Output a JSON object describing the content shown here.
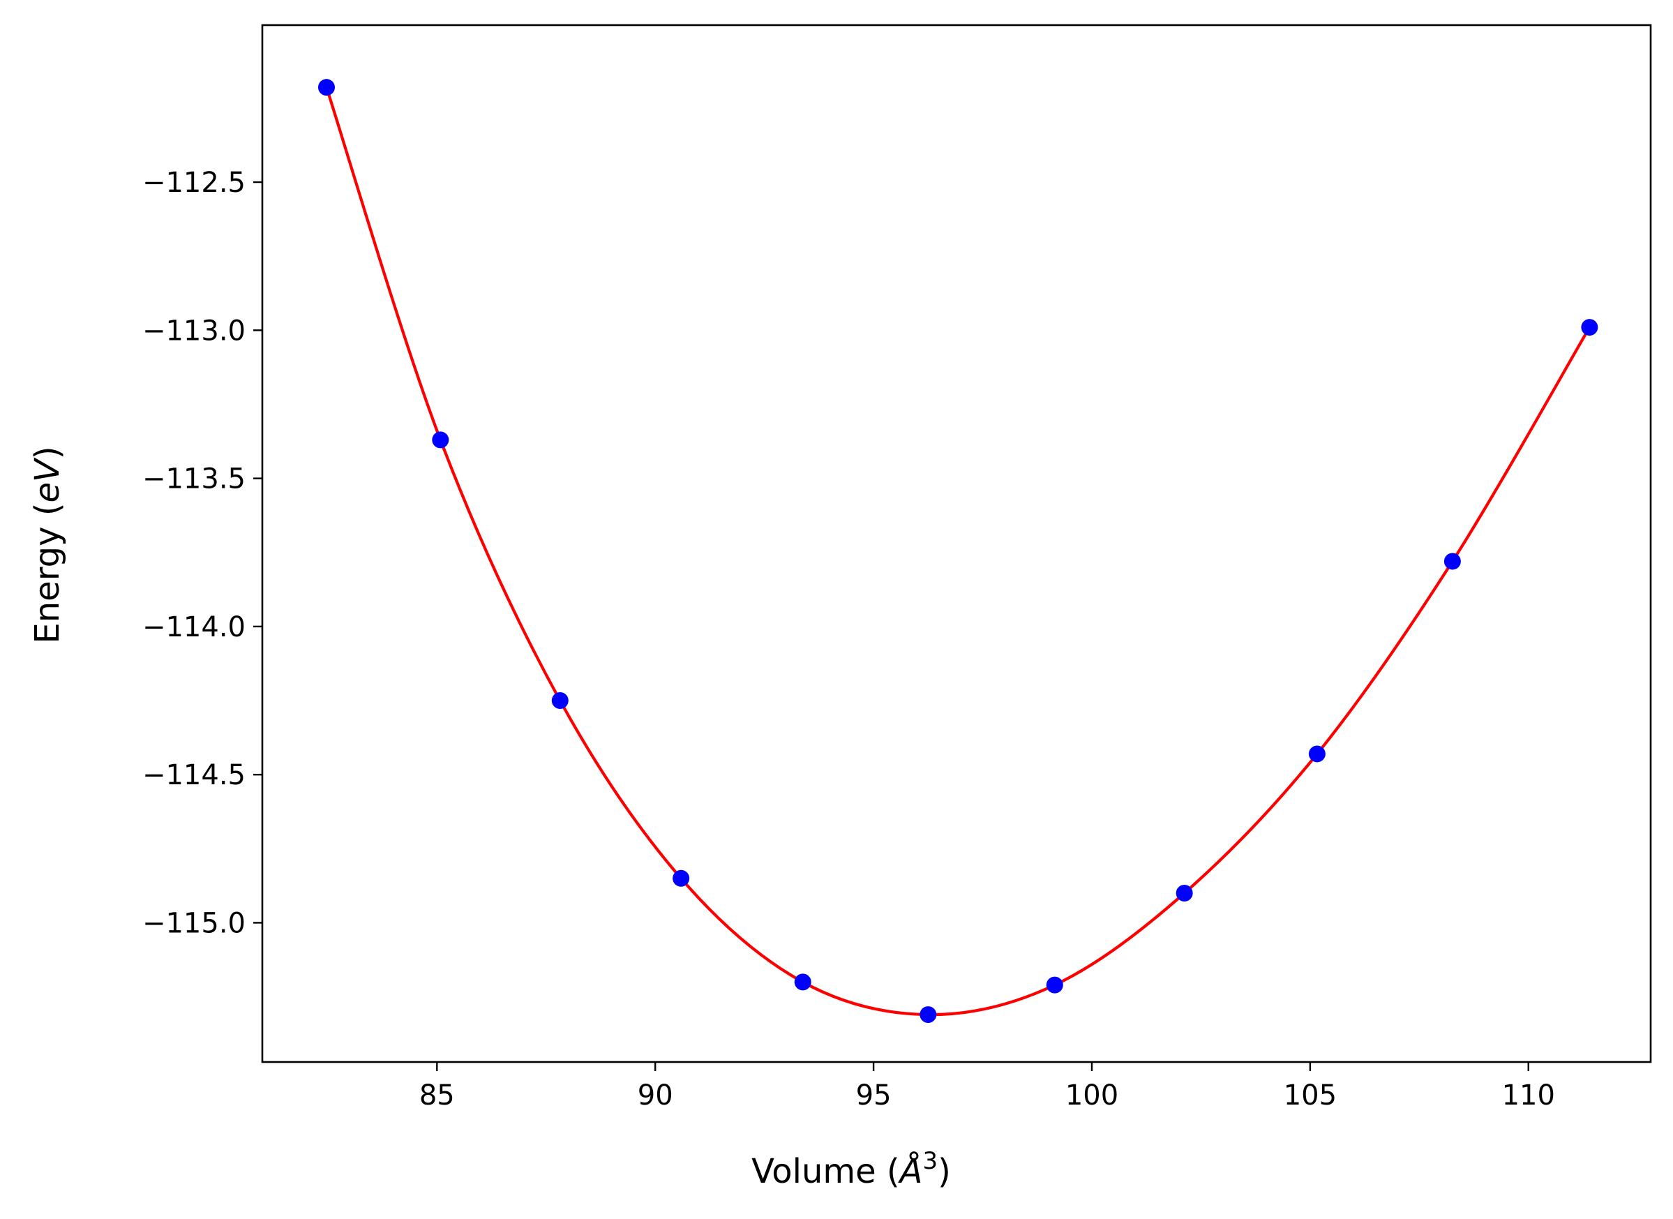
{
  "chart_data": {
    "type": "scatter",
    "title": "",
    "xlabel": {
      "prefix": "Volume (",
      "unit_symbol": "Å",
      "unit_power": "3",
      "suffix": ")"
    },
    "ylabel": {
      "prefix": "Energy (",
      "unit": "eV",
      "suffix": ")"
    },
    "xlim": [
      81.0,
      112.8
    ],
    "ylim": [
      -115.47,
      -111.97
    ],
    "xticks": [
      85,
      90,
      95,
      100,
      105,
      110
    ],
    "xtick_labels": [
      "85",
      "90",
      "95",
      "100",
      "105",
      "110"
    ],
    "yticks": [
      -112.5,
      -113.0,
      -113.5,
      -114.0,
      -114.5,
      -115.0
    ],
    "ytick_labels": [
      "−112.5",
      "−113.0",
      "−113.5",
      "−114.0",
      "−114.5",
      "−115.0"
    ],
    "grid": false,
    "legend": null,
    "series": [
      {
        "kind": "markers",
        "color": "#0000ff",
        "x": [
          82.47,
          85.08,
          87.82,
          90.59,
          93.38,
          96.25,
          99.15,
          102.12,
          105.16,
          108.26,
          111.4
        ],
        "y": [
          -112.18,
          -113.37,
          -114.25,
          -114.85,
          -115.2,
          -115.31,
          -115.21,
          -114.9,
          -114.43,
          -113.78,
          -112.99
        ]
      },
      {
        "kind": "fit-curve",
        "color": "#ff0000",
        "x": [
          82.47,
          85.08,
          87.82,
          90.59,
          93.38,
          96.25,
          99.15,
          102.12,
          105.16,
          108.26,
          111.4
        ],
        "y": [
          -112.18,
          -113.37,
          -114.25,
          -114.85,
          -115.2,
          -115.31,
          -115.21,
          -114.9,
          -114.43,
          -113.78,
          -112.99
        ]
      }
    ]
  }
}
